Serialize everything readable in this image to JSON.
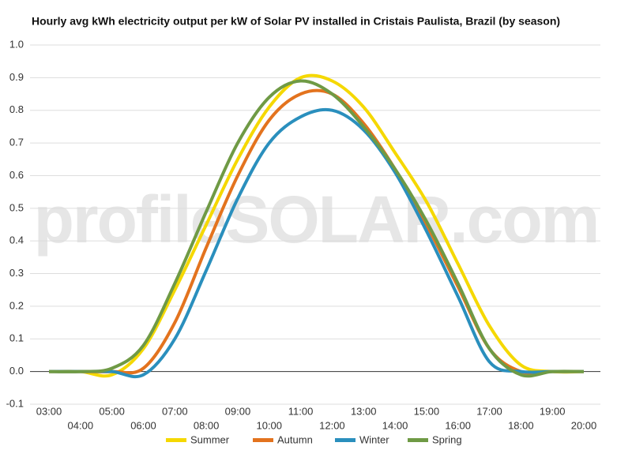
{
  "chart_data": {
    "type": "line",
    "title": "Hourly avg kWh electricity output per kW of Solar PV installed in Cristais Paulista, Brazil (by season)",
    "watermark": "profileSOLAR.com",
    "categories": [
      "03:00",
      "04:00",
      "05:00",
      "06:00",
      "07:00",
      "08:00",
      "09:00",
      "10:00",
      "11:00",
      "12:00",
      "13:00",
      "14:00",
      "15:00",
      "16:00",
      "17:00",
      "18:00",
      "19:00",
      "20:00"
    ],
    "series": [
      {
        "name": "Summer",
        "color": "#f5d800",
        "values": [
          0,
          0,
          -0.01,
          0.07,
          0.25,
          0.45,
          0.65,
          0.81,
          0.9,
          0.89,
          0.81,
          0.67,
          0.52,
          0.33,
          0.14,
          0.02,
          0,
          0
        ]
      },
      {
        "name": "Autumn",
        "color": "#e3731e",
        "values": [
          0,
          0,
          0,
          0.01,
          0.15,
          0.38,
          0.6,
          0.77,
          0.85,
          0.85,
          0.76,
          0.62,
          0.45,
          0.26,
          0.07,
          0,
          0,
          0
        ]
      },
      {
        "name": "Winter",
        "color": "#2a8fbd",
        "values": [
          0,
          0,
          0,
          -0.01,
          0.1,
          0.31,
          0.53,
          0.7,
          0.78,
          0.8,
          0.74,
          0.61,
          0.43,
          0.23,
          0.03,
          0,
          0,
          0
        ]
      },
      {
        "name": "Spring",
        "color": "#6f9a45",
        "values": [
          0,
          0,
          0.01,
          0.08,
          0.27,
          0.49,
          0.7,
          0.84,
          0.89,
          0.85,
          0.75,
          0.62,
          0.46,
          0.27,
          0.07,
          -0.01,
          0,
          0
        ]
      }
    ],
    "ylim": [
      -0.1,
      1.0
    ],
    "yticks": [
      {
        "value": -0.1,
        "label": "-0.1"
      },
      {
        "value": 0,
        "label": "0.0"
      },
      0.1,
      0.2,
      0.3,
      0.4,
      0.5,
      0.6,
      0.7,
      0.8,
      0.9,
      {
        "value": 1,
        "label": "1.0"
      }
    ],
    "grid": true,
    "legend": "bottom"
  }
}
